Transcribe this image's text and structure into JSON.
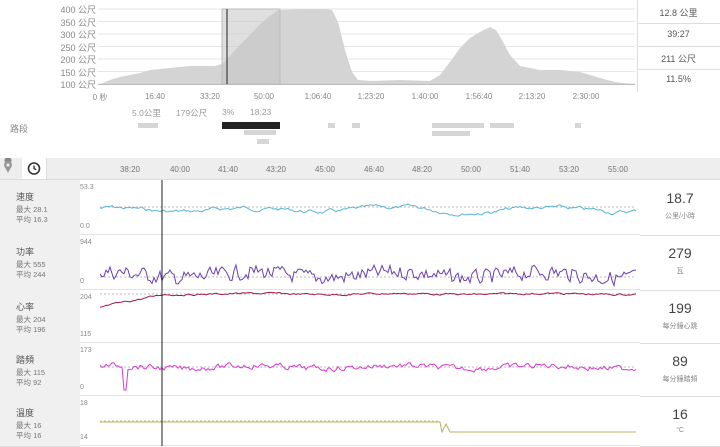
{
  "overview": {
    "y_labels": [
      "400 公尺",
      "350 公尺",
      "300 公尺",
      "250 公尺",
      "200 公尺",
      "150 公尺",
      "100 公尺"
    ],
    "x_labels": [
      "0 秒",
      "16:40",
      "33:20",
      "50:00",
      "1:06:40",
      "1:23:20",
      "1:40:00",
      "1:56:40",
      "2:13:20",
      "2:30:00"
    ]
  },
  "selection_stats": [
    "12.8 公里",
    "39:27",
    "211 公尺",
    "11.5%"
  ],
  "segments": {
    "label": "路段",
    "info": [
      "5.0公里",
      "179公尺",
      "3%",
      "18:23"
    ]
  },
  "timeline": {
    "location_icon": "map-pin-icon",
    "clock_icon": "clock-icon",
    "labels": [
      "38:20",
      "40:00",
      "41:40",
      "43:20",
      "45:00",
      "46:40",
      "48:20",
      "50:00",
      "51:40",
      "53:20",
      "55:00"
    ]
  },
  "rows": [
    {
      "key": "speed",
      "title": "速度",
      "max": "最大 28.1",
      "avg": "平均 16.3",
      "value": "18.7",
      "unit": "公里/小時",
      "top_tick": "53.3",
      "bottom_tick": "0.0",
      "color": "#5ab4d6"
    },
    {
      "key": "power",
      "title": "功率",
      "max": "最大 555",
      "avg": "平均 244",
      "value": "279",
      "unit": "瓦",
      "top_tick": "944",
      "bottom_tick": "0",
      "color": "#6a3fb0"
    },
    {
      "key": "hr",
      "title": "心率",
      "max": "最大 204",
      "avg": "平均 196",
      "value": "199",
      "unit": "每分鐘心跳",
      "top_tick": "204",
      "bottom_tick": "115",
      "color": "#a0194f"
    },
    {
      "key": "cadence",
      "title": "踏頻",
      "max": "最大 115",
      "avg": "平均 92",
      "value": "89",
      "unit": "每分鐘踏頻",
      "top_tick": "173",
      "bottom_tick": "0",
      "color": "#d63ad0"
    },
    {
      "key": "temp",
      "title": "溫度",
      "max": "最大 16",
      "avg": "平均 16",
      "value": "16",
      "unit": "°C",
      "top_tick": "18",
      "bottom_tick": "14",
      "color": "#b8b060"
    }
  ]
}
